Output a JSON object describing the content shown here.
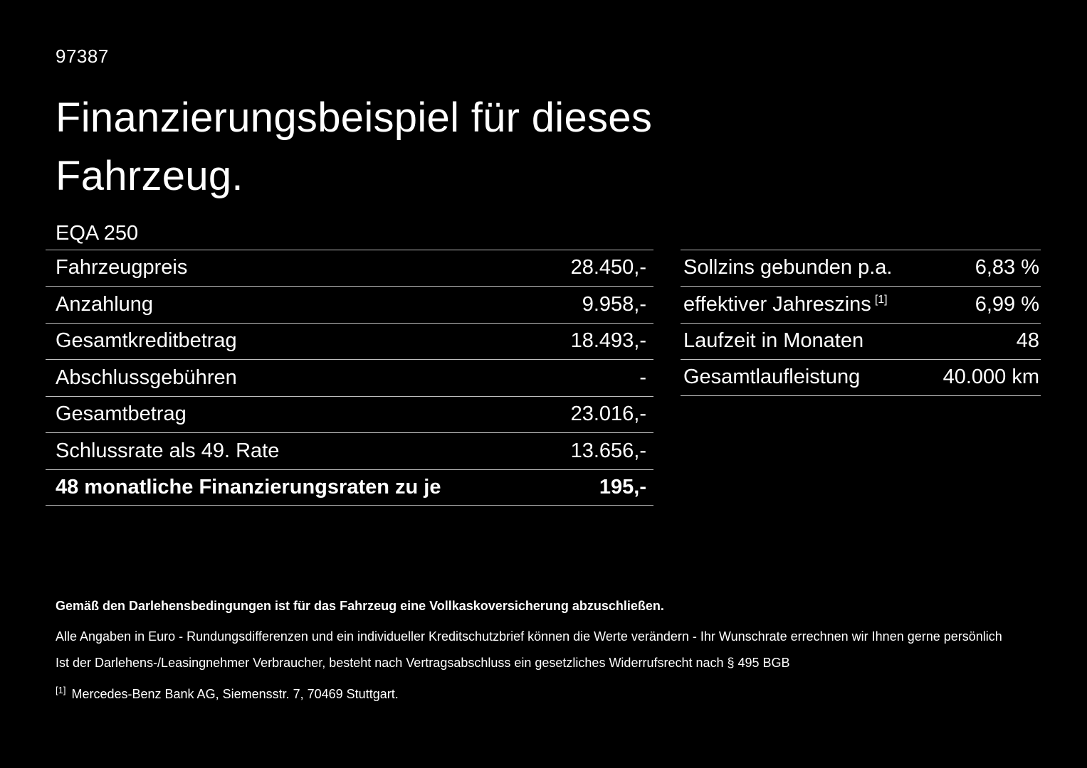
{
  "page": {
    "doc_id": "97387",
    "title_line1": "Finanzierungsbeispiel für dieses",
    "title_line2": "Fahrzeug.",
    "model": "EQA 250"
  },
  "finance_table": {
    "rows": [
      {
        "label": "Fahrzeugpreis",
        "value": "28.450,-"
      },
      {
        "label": "Anzahlung",
        "value": "9.958,-"
      },
      {
        "label": "Gesamtkreditbetrag",
        "value": "18.493,-"
      },
      {
        "label": "Abschlussgebühren",
        "value": "-"
      },
      {
        "label": "Gesamtbetrag",
        "value": "23.016,-"
      },
      {
        "label": "Schlussrate als 49. Rate",
        "value": "13.656,-"
      },
      {
        "label": "48 monatliche Finanzierungsraten zu je",
        "value": "195,-"
      }
    ]
  },
  "conditions_table": {
    "rows": [
      {
        "label": "Sollzins gebunden p.a.",
        "value": "6,83 %"
      },
      {
        "label": "effektiver Jahreszins",
        "footnote_marker": "[1]",
        "value": "6,99 %"
      },
      {
        "label": "Laufzeit in Monaten",
        "value": "48"
      },
      {
        "label": "Gesamtlaufleistung",
        "value": "40.000 km"
      }
    ]
  },
  "footer": {
    "insurance_note": "Gemäß den Darlehensbedingungen ist für das Fahrzeug eine Vollkaskoversicherung abzuschließen.",
    "euro_note": "Alle Angaben in Euro - Rundungsdifferenzen und ein individueller Kreditschutzbrief können die Werte verändern - Ihr Wunschrate errechnen wir Ihnen gerne persönlich",
    "withdrawal_note": "Ist der Darlehens-/Leasingnehmer Verbraucher, besteht nach Vertragsabschluss ein gesetzliches Widerrufsrecht nach § 495 BGB",
    "footnote_marker": "[1]",
    "footnote_text": "Mercedes-Benz Bank AG, Siemensstr. 7, 70469 Stuttgart."
  },
  "colors": {
    "background": "#000000",
    "text": "#ffffff",
    "divider": "#bfbfbf"
  }
}
